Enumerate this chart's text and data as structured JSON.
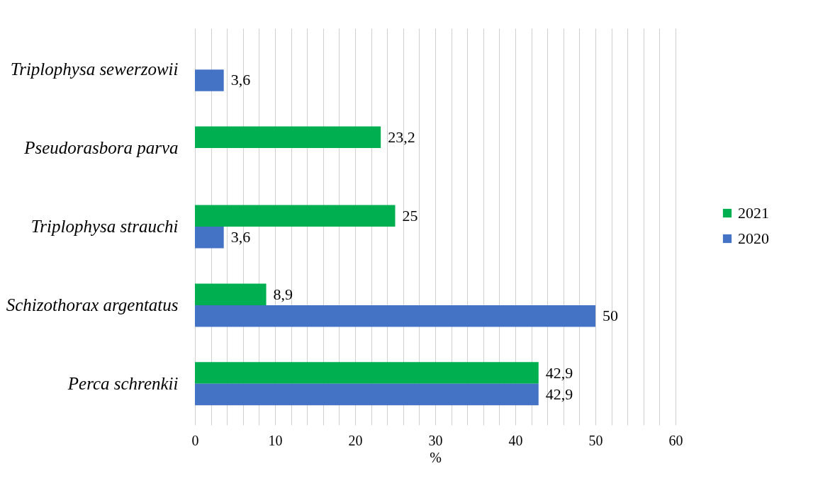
{
  "chart_data": {
    "type": "bar",
    "orientation": "horizontal",
    "xlabel": "%",
    "categories": [
      "Triplophysa sewerzowii",
      "Pseudorasbora parva",
      "Triplophysa strauchi",
      "Schizothorax argentatus",
      "Perca schrenkii"
    ],
    "series": [
      {
        "name": "2021",
        "color": "#00b050",
        "values": [
          null,
          23.2,
          25,
          8.9,
          42.9
        ],
        "value_labels": [
          null,
          "23,2",
          "25",
          "8,9",
          "42,9"
        ]
      },
      {
        "name": "2020",
        "color": "#4472c4",
        "values": [
          3.6,
          null,
          3.6,
          50,
          42.9
        ],
        "value_labels": [
          "3,6",
          null,
          "3,6",
          "50",
          "42,9"
        ]
      }
    ],
    "xlim": [
      0,
      60
    ],
    "xticks": [
      0,
      {
        "value": 2,
        "label": null
      },
      {
        "value": 4,
        "label": null
      },
      {
        "value": 6,
        "label": null
      },
      {
        "value": 8,
        "label": null
      },
      10,
      {
        "value": 12,
        "label": null
      },
      {
        "value": 14,
        "label": null
      },
      {
        "value": 16,
        "label": null
      },
      {
        "value": 18,
        "label": null
      },
      20,
      {
        "value": 22,
        "label": null
      },
      {
        "value": 24,
        "label": null
      },
      {
        "value": 26,
        "label": null
      },
      {
        "value": 28,
        "label": null
      },
      30,
      {
        "value": 32,
        "label": null
      },
      {
        "value": 34,
        "label": null
      },
      {
        "value": 36,
        "label": null
      },
      {
        "value": 38,
        "label": null
      },
      40,
      {
        "value": 42,
        "label": null
      },
      {
        "value": 44,
        "label": null
      },
      {
        "value": 46,
        "label": null
      },
      {
        "value": 48,
        "label": null
      },
      50,
      {
        "value": 52,
        "label": null
      },
      {
        "value": 54,
        "label": null
      },
      {
        "value": 56,
        "label": null
      },
      {
        "value": 58,
        "label": null
      },
      60
    ],
    "grid": "x",
    "legend": "right"
  }
}
